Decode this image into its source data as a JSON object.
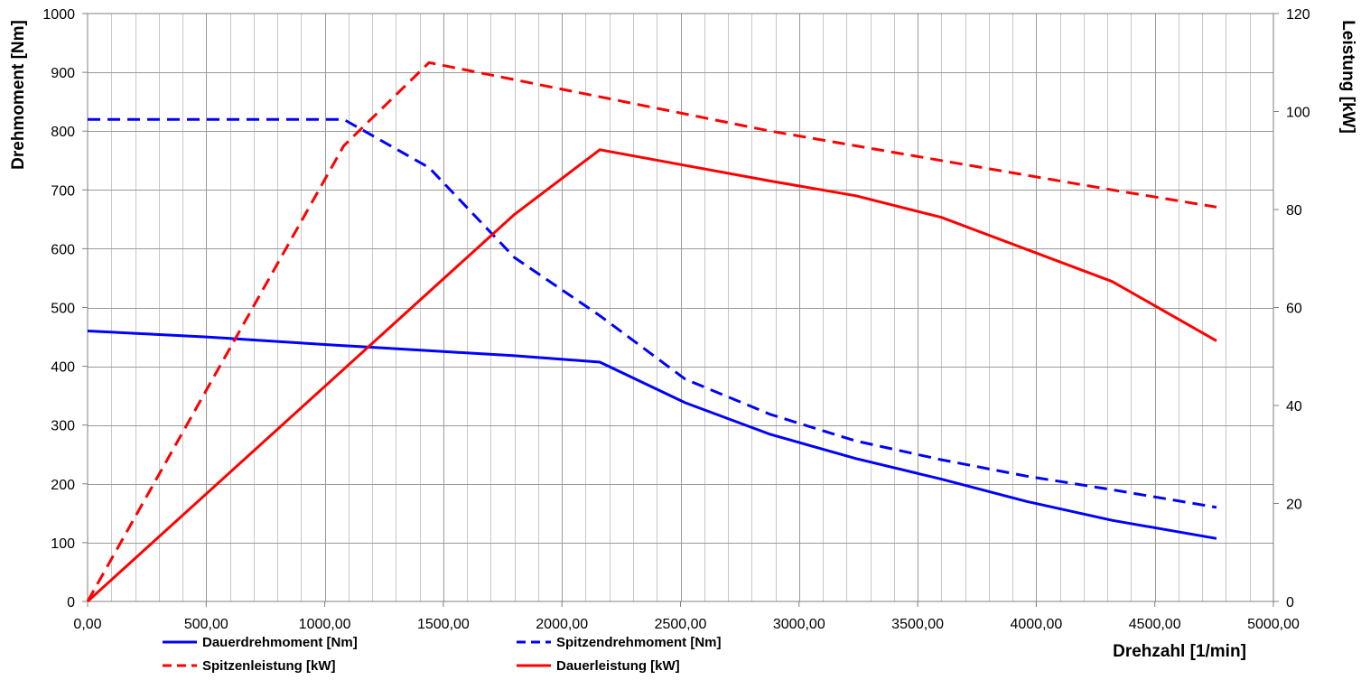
{
  "chart_data": {
    "type": "line",
    "xlabel": "Drehzahl [1/min]",
    "ylabel": "Drehmoment [Nm]",
    "y2label": "Leistung [kW]",
    "xlim": [
      0,
      5000
    ],
    "ylim": [
      0,
      1000
    ],
    "y2lim": [
      0,
      120
    ],
    "x_ticks": [
      0,
      500,
      1000,
      1500,
      2000,
      2500,
      3000,
      3500,
      4000,
      4500,
      5000
    ],
    "x_tick_labels": [
      "0,00",
      "500,00",
      "1000,00",
      "1500,00",
      "2000,00",
      "2500,00",
      "3000,00",
      "3500,00",
      "4000,00",
      "4500,00",
      "5000,00"
    ],
    "y_ticks": [
      0,
      100,
      200,
      300,
      400,
      500,
      600,
      700,
      800,
      900,
      1000
    ],
    "y_tick_labels": [
      "0",
      "100",
      "200",
      "300",
      "400",
      "500",
      "600",
      "700",
      "800",
      "900",
      "1000"
    ],
    "y2_ticks": [
      0,
      20,
      40,
      60,
      80,
      100,
      120
    ],
    "y2_tick_labels": [
      "0",
      "20",
      "40",
      "60",
      "80",
      "100",
      "120"
    ],
    "grid": "on",
    "legend_position": "bottom",
    "series": [
      {
        "name": "Dauerdrehmoment [Nm]",
        "axis": "left",
        "color": "#0000ff",
        "dash": "solid",
        "points": [
          [
            0,
            460
          ],
          [
            500,
            450
          ],
          [
            1000,
            437
          ],
          [
            1500,
            425
          ],
          [
            1800,
            418
          ],
          [
            2160,
            407
          ],
          [
            2520,
            338
          ],
          [
            2880,
            284
          ],
          [
            3240,
            243
          ],
          [
            3600,
            208
          ],
          [
            3960,
            170
          ],
          [
            4320,
            138
          ],
          [
            4760,
            107
          ]
        ]
      },
      {
        "name": "Spitzendrehmoment [Nm]",
        "axis": "left",
        "color": "#0000ff",
        "dash": "dashed",
        "points": [
          [
            0,
            820
          ],
          [
            1080,
            820
          ],
          [
            1440,
            738
          ],
          [
            1800,
            585
          ],
          [
            2160,
            486
          ],
          [
            2520,
            378
          ],
          [
            2880,
            318
          ],
          [
            3240,
            273
          ],
          [
            3600,
            241
          ],
          [
            3960,
            213
          ],
          [
            4320,
            190
          ],
          [
            4760,
            160
          ]
        ]
      },
      {
        "name": "Spitzenleistung [kW]",
        "axis": "right",
        "color": "#ff0000",
        "dash": "dashed",
        "points": [
          [
            0,
            0
          ],
          [
            1080,
            93
          ],
          [
            1440,
            110
          ],
          [
            2160,
            103
          ],
          [
            2880,
            96
          ],
          [
            3600,
            90
          ],
          [
            4320,
            84
          ],
          [
            4760,
            80.5
          ]
        ]
      },
      {
        "name": "Dauerleistung [kW]",
        "axis": "right",
        "color": "#ff0000",
        "dash": "solid",
        "points": [
          [
            0,
            0
          ],
          [
            1800,
            79
          ],
          [
            2160,
            92.2
          ],
          [
            2520,
            89
          ],
          [
            2880,
            85.8
          ],
          [
            3240,
            82.8
          ],
          [
            3600,
            78.4
          ],
          [
            4320,
            65.3
          ],
          [
            4760,
            53.2
          ]
        ]
      }
    ]
  }
}
